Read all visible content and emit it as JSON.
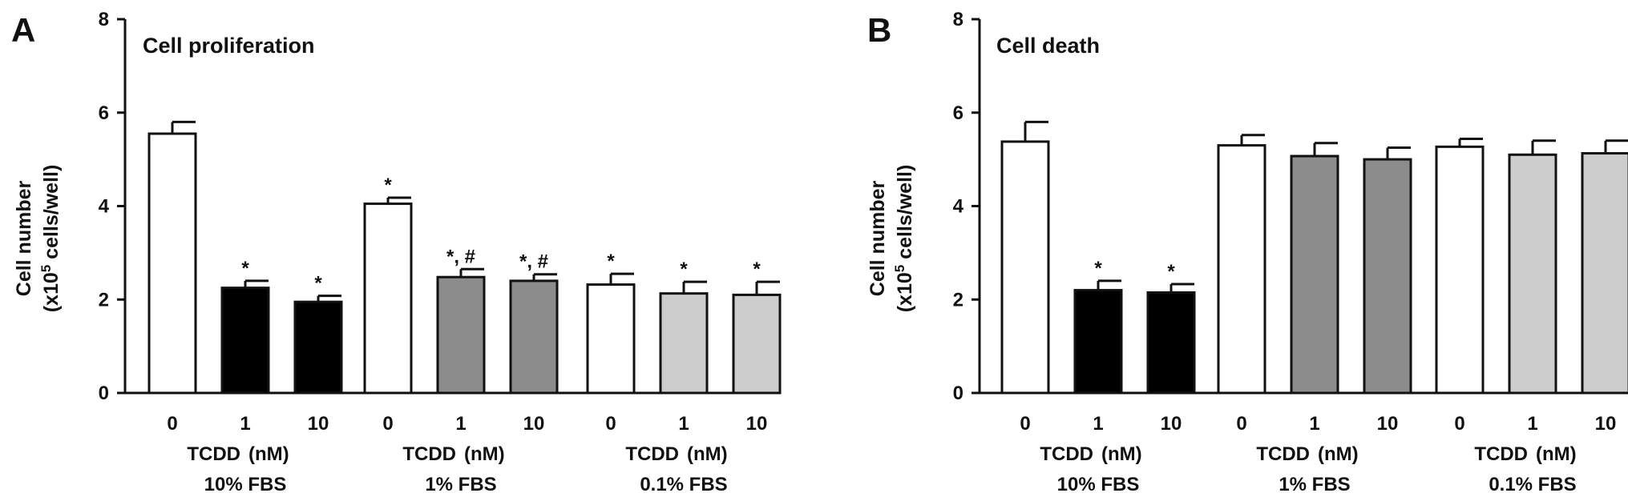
{
  "chart_data": [
    {
      "type": "bar",
      "panel_label": "A",
      "title": "Cell proliferation",
      "ylabel_line1": "Cell number",
      "ylabel_line2_prefix": "(x10",
      "ylabel_superscript": "5",
      "ylabel_line2_suffix": " cells/well)",
      "ylim": [
        0,
        8
      ],
      "yticks": [
        "0",
        "2",
        "4",
        "6",
        "8"
      ],
      "grid": false,
      "groups": [
        {
          "name": "10% FBS",
          "xlabel": "TCDD",
          "unit": "(nM)",
          "bars": [
            {
              "category": "0",
              "value": 5.55,
              "error": 0.25,
              "fill": "#ffffff",
              "annotation": ""
            },
            {
              "category": "1",
              "value": 2.25,
              "error": 0.15,
              "fill": "#000000",
              "annotation": "*"
            },
            {
              "category": "10",
              "value": 1.95,
              "error": 0.13,
              "fill": "#000000",
              "annotation": "*"
            }
          ]
        },
        {
          "name": "1% FBS",
          "xlabel": "TCDD",
          "unit": "(nM)",
          "bars": [
            {
              "category": "0",
              "value": 4.05,
              "error": 0.13,
              "fill": "#ffffff",
              "annotation": "*"
            },
            {
              "category": "1",
              "value": 2.48,
              "error": 0.17,
              "fill": "#8c8c8c",
              "annotation": "*, #"
            },
            {
              "category": "10",
              "value": 2.4,
              "error": 0.14,
              "fill": "#8c8c8c",
              "annotation": "*, #"
            }
          ]
        },
        {
          "name": "0.1% FBS",
          "xlabel": "TCDD",
          "unit": "(nM)",
          "bars": [
            {
              "category": "0",
              "value": 2.32,
              "error": 0.23,
              "fill": "#ffffff",
              "annotation": "*"
            },
            {
              "category": "1",
              "value": 2.13,
              "error": 0.25,
              "fill": "#cdcdcd",
              "annotation": "*"
            },
            {
              "category": "10",
              "value": 2.1,
              "error": 0.28,
              "fill": "#cdcdcd",
              "annotation": "*"
            }
          ]
        }
      ]
    },
    {
      "type": "bar",
      "panel_label": "B",
      "title": "Cell death",
      "ylabel_line1": "Cell number",
      "ylabel_line2_prefix": "(x10",
      "ylabel_superscript": "5",
      "ylabel_line2_suffix": " cells/well)",
      "ylim": [
        0,
        8
      ],
      "yticks": [
        "0",
        "2",
        "4",
        "6",
        "8"
      ],
      "grid": false,
      "groups": [
        {
          "name": "10% FBS",
          "xlabel": "TCDD",
          "unit": "(nM)",
          "bars": [
            {
              "category": "0",
              "value": 5.38,
              "error": 0.42,
              "fill": "#ffffff",
              "annotation": ""
            },
            {
              "category": "1",
              "value": 2.2,
              "error": 0.2,
              "fill": "#000000",
              "annotation": "*"
            },
            {
              "category": "10",
              "value": 2.15,
              "error": 0.18,
              "fill": "#000000",
              "annotation": "*"
            }
          ]
        },
        {
          "name": "1% FBS",
          "xlabel": "TCDD",
          "unit": "(nM)",
          "bars": [
            {
              "category": "0",
              "value": 5.3,
              "error": 0.22,
              "fill": "#ffffff",
              "annotation": ""
            },
            {
              "category": "1",
              "value": 5.07,
              "error": 0.28,
              "fill": "#8c8c8c",
              "annotation": ""
            },
            {
              "category": "10",
              "value": 5.0,
              "error": 0.25,
              "fill": "#8c8c8c",
              "annotation": ""
            }
          ]
        },
        {
          "name": "0.1% FBS",
          "xlabel": "TCDD",
          "unit": "(nM)",
          "bars": [
            {
              "category": "0",
              "value": 5.27,
              "error": 0.17,
              "fill": "#ffffff",
              "annotation": ""
            },
            {
              "category": "1",
              "value": 5.1,
              "error": 0.3,
              "fill": "#cdcdcd",
              "annotation": ""
            },
            {
              "category": "10",
              "value": 5.13,
              "error": 0.27,
              "fill": "#cdcdcd",
              "annotation": ""
            }
          ]
        }
      ]
    }
  ]
}
